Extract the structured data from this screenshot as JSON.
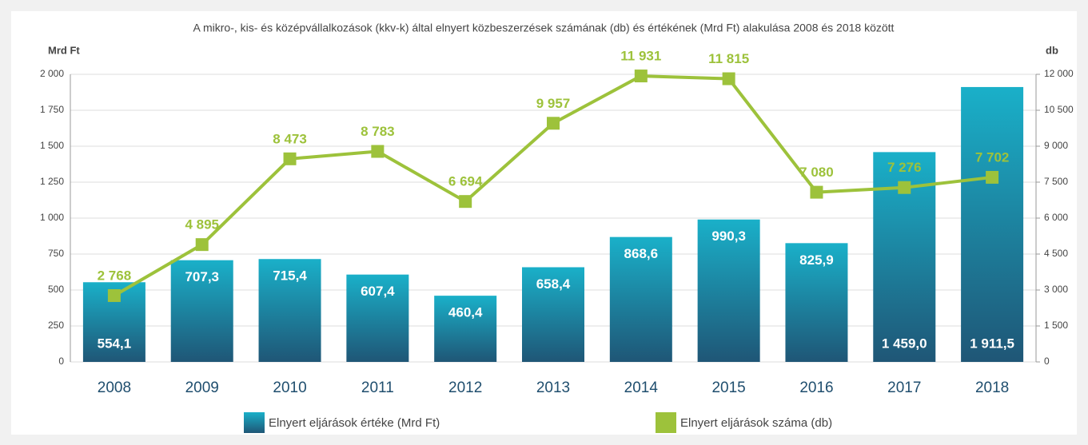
{
  "chart_data": {
    "type": "bar",
    "title": "A mikro-, kis- és középvállalkozások (kkv-k) által elnyert közbeszerzések számának (db) és értékének (Mrd Ft) alakulása 2008 és 2018 között",
    "y_label": "Mrd Ft",
    "y2_label": "db",
    "categories": [
      "2008",
      "2009",
      "2010",
      "2011",
      "2012",
      "2013",
      "2014",
      "2015",
      "2016",
      "2017",
      "2018"
    ],
    "series": [
      {
        "name": "Elnyert eljárások értéke (Mrd Ft)",
        "type": "bar",
        "axis": "y",
        "color": "#1a9bb8",
        "values": [
          554.1,
          707.3,
          715.4,
          607.4,
          460.4,
          658.4,
          868.6,
          990.3,
          825.9,
          1459.0,
          1911.5
        ],
        "value_labels": [
          "554,1",
          "707,3",
          "715,4",
          "607,4",
          "460,4",
          "658,4",
          "868,6",
          "990,3",
          "825,9",
          "1 459,0",
          "1 911,5"
        ]
      },
      {
        "name": "Elnyert eljárások száma (db)",
        "type": "line",
        "axis": "y2",
        "color": "#9dc23b",
        "values": [
          2768,
          4895,
          8473,
          8783,
          6694,
          9957,
          11931,
          11815,
          7080,
          7276,
          7702
        ],
        "value_labels": [
          "2 768",
          "4 895",
          "8 473",
          "8 783",
          "6 694",
          "9 957",
          "11 931",
          "11 815",
          "7 080",
          "7 276",
          "7 702"
        ]
      }
    ],
    "ylim": [
      0,
      2000
    ],
    "yticks": [
      0,
      250,
      500,
      750,
      {
        "value": 1000,
        "label": "1 000"
      },
      {
        "value": 1250,
        "label": "1 250"
      },
      {
        "value": 1500,
        "label": "1 500"
      },
      {
        "value": 1750,
        "label": "1 750"
      },
      {
        "value": 2000,
        "label": "2 000"
      }
    ],
    "y2lim": [
      0,
      12000
    ],
    "y2ticks": [
      0,
      {
        "value": 1500,
        "label": "1 500"
      },
      {
        "value": 3000,
        "label": "3 000"
      },
      {
        "value": 4500,
        "label": "4 500"
      },
      {
        "value": 6000,
        "label": "6 000"
      },
      {
        "value": 7500,
        "label": "7 500"
      },
      {
        "value": 9000,
        "label": "9 000"
      },
      {
        "value": 10500,
        "label": "10 500"
      },
      {
        "value": 12000,
        "label": "12 000"
      }
    ],
    "grid": true
  }
}
